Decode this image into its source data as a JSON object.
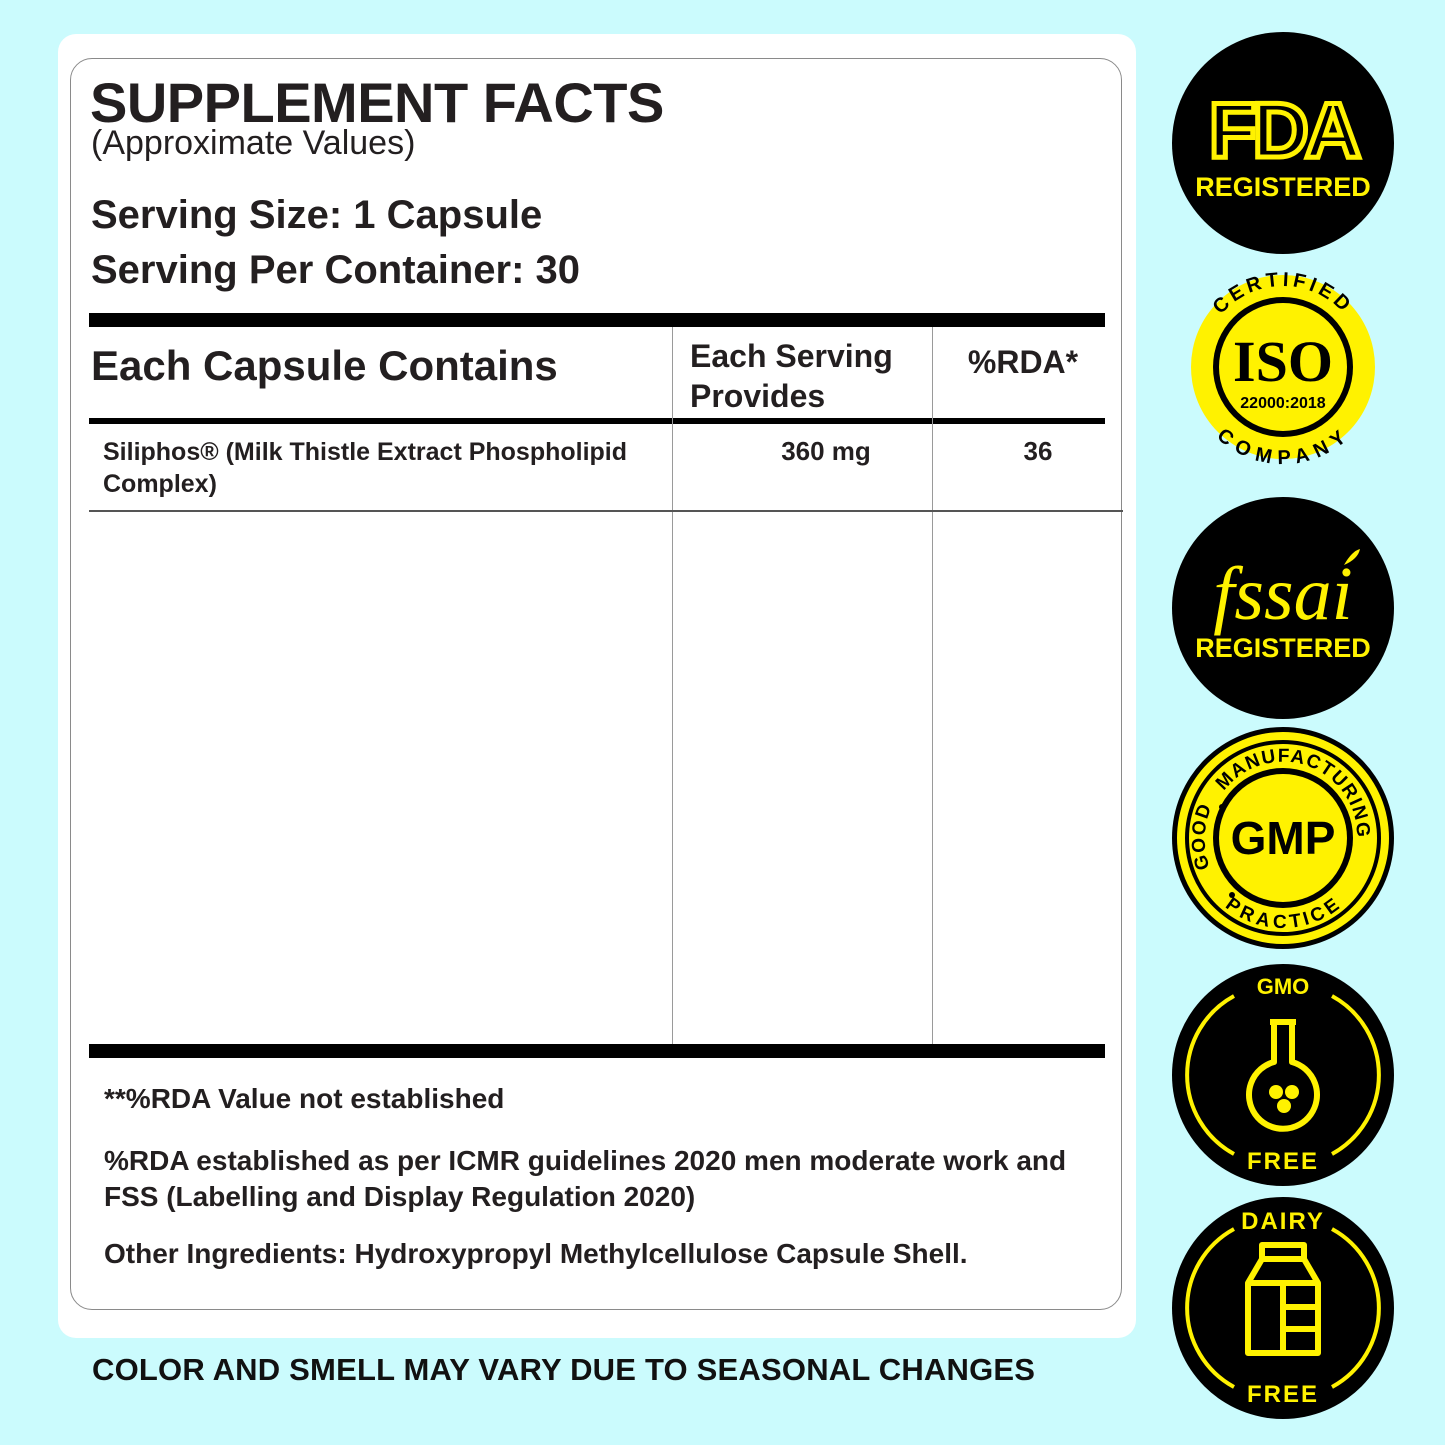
{
  "label": {
    "title": "SUPPLEMENT FACTS",
    "subtitle": "(Approximate Values)",
    "serving_size": "Serving Size: 1 Capsule",
    "servings_per_container": "Serving Per Container: 30"
  },
  "table": {
    "headers": [
      "Each Capsule Contains",
      "Each Serving Provides",
      "%RDA*"
    ],
    "rows": [
      {
        "name": "Siliphos® (Milk Thistle Extract Phospholipid Complex)",
        "amount": "360 mg",
        "rda": "36"
      }
    ]
  },
  "notes": {
    "rda_note": "**%RDA Value not established",
    "guidelines": "%RDA established as per ICMR guidelines 2020 men moderate work and FSS (Labelling and Display Regulation 2020)",
    "other_ingredients": "Other Ingredients: Hydroxypropyl Methylcellulose Capsule Shell."
  },
  "footer": "COLOR AND SMELL MAY VARY DUE TO SEASONAL CHANGES",
  "badges": {
    "fda": {
      "logo": "FDA",
      "text": "REGISTERED"
    },
    "iso": {
      "top": "CERTIFIED",
      "main": "ISO",
      "code": "22000:2018",
      "bottom": "COMPANY"
    },
    "fssai": {
      "logo": "fssai",
      "text": "REGISTERED"
    },
    "gmp": {
      "top": "MANUFACTURING",
      "left": "GOOD",
      "bottom": "PRACTICE",
      "main": "GMP"
    },
    "gmo": {
      "top": "GMO",
      "bottom": "FREE",
      "icon": "flask-icon"
    },
    "dairy": {
      "top": "DAIRY",
      "bottom": "FREE",
      "icon": "milk-carton-icon"
    }
  },
  "colors": {
    "background": "#cbfbfd",
    "badge_yellow": "#fff200",
    "badge_black": "#000000"
  }
}
